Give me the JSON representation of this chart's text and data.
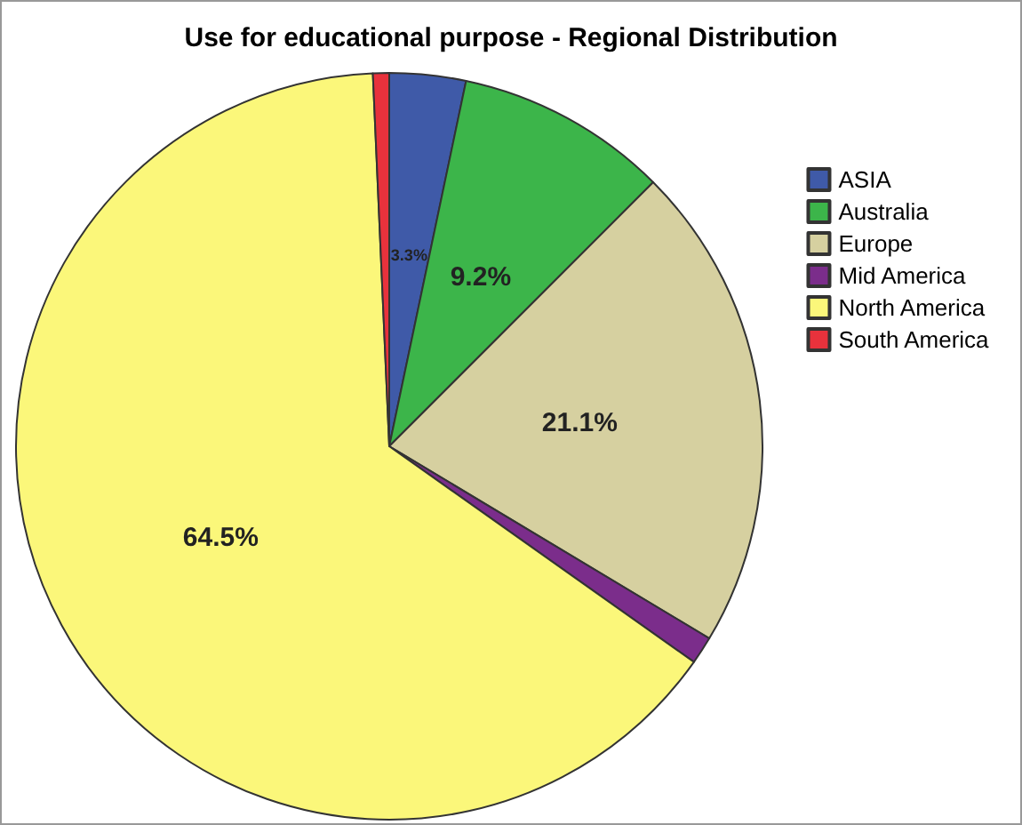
{
  "chart_data": {
    "type": "pie",
    "title": "Use for educational purpose - Regional Distribution",
    "categories": [
      "ASIA",
      "Australia",
      "Europe",
      "Mid America",
      "North America",
      "South America"
    ],
    "values": [
      3.3,
      9.2,
      21.1,
      1.2,
      64.5,
      0.7
    ],
    "colors": [
      "#3f5aa8",
      "#3cb54a",
      "#d6d0a0",
      "#7b2d8b",
      "#fbf77a",
      "#e8323c"
    ],
    "value_labels": [
      "3.3%",
      "9.2%",
      "21.1%",
      null,
      "64.5%",
      null
    ],
    "legend": "right"
  }
}
